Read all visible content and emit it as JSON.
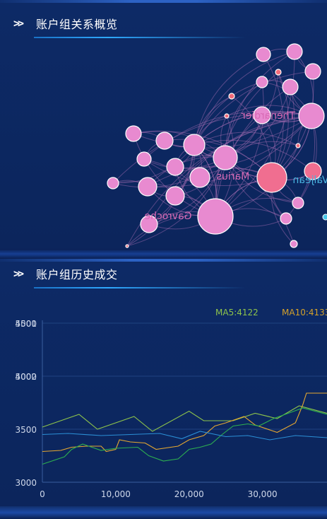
{
  "panels": {
    "relations": {
      "chevron": ">>",
      "title": "账户组关系概览"
    },
    "history": {
      "chevron": ">>",
      "title": "账户组历史成交"
    }
  },
  "graph": {
    "labels": [
      "Thenardier",
      "Marius",
      "Gavroche",
      "Valjean"
    ],
    "node_color": "#e88ad0",
    "edge_color": "#b070b8"
  },
  "chart_data": {
    "type": "line",
    "legend": [
      {
        "text": "MA5:4122",
        "color": "#8ec44b"
      },
      {
        "text": "MA10:4133",
        "color": "#d4a12a"
      }
    ],
    "ytick_labels": [
      "4500",
      "4000",
      "3500",
      "3000"
    ],
    "ytick_overlap_labels": [
      "5001",
      "5002"
    ],
    "xtick_labels": [
      "0",
      "10,000",
      "20,000",
      "30,000"
    ],
    "ylim": [
      3000,
      4500
    ],
    "xlim": [
      0,
      38800
    ],
    "series": [
      {
        "color": "#8ec44b",
        "x": [
          0,
          5000,
          7500,
          12500,
          15000,
          20000,
          22000,
          26000,
          29000,
          32000,
          35000,
          38800
        ],
        "y": [
          3520,
          3640,
          3500,
          3620,
          3480,
          3670,
          3580,
          3580,
          3650,
          3600,
          3720,
          3650
        ]
      },
      {
        "color": "#e6a830",
        "x": [
          0,
          2500,
          4000,
          6000,
          8000,
          8700,
          10000,
          10500,
          12000,
          14000,
          15500,
          18500,
          20000,
          22000,
          23500,
          25000,
          27500,
          29000,
          32000,
          34500,
          35500,
          36000,
          38800
        ],
        "y": [
          3290,
          3300,
          3330,
          3340,
          3340,
          3290,
          3310,
          3400,
          3380,
          3370,
          3310,
          3340,
          3400,
          3440,
          3530,
          3560,
          3620,
          3540,
          3470,
          3560,
          3730,
          3840,
          3840
        ]
      },
      {
        "color": "#2db050",
        "x": [
          0,
          3000,
          4000,
          5500,
          8000,
          10000,
          13000,
          14500,
          16500,
          18500,
          20000,
          21500,
          23000,
          24500,
          26000,
          28000,
          29500,
          31500,
          33500,
          35500,
          38800
        ],
        "y": [
          3170,
          3240,
          3310,
          3360,
          3300,
          3320,
          3330,
          3250,
          3200,
          3220,
          3310,
          3330,
          3360,
          3450,
          3530,
          3550,
          3530,
          3600,
          3650,
          3700,
          3640
        ]
      },
      {
        "color": "#2b8fd6",
        "x": [
          0,
          3500,
          8000,
          12000,
          16000,
          19000,
          21500,
          25000,
          28000,
          31000,
          34500,
          38800
        ],
        "y": [
          3450,
          3460,
          3440,
          3450,
          3460,
          3410,
          3480,
          3430,
          3440,
          3400,
          3440,
          3420
        ]
      }
    ]
  }
}
